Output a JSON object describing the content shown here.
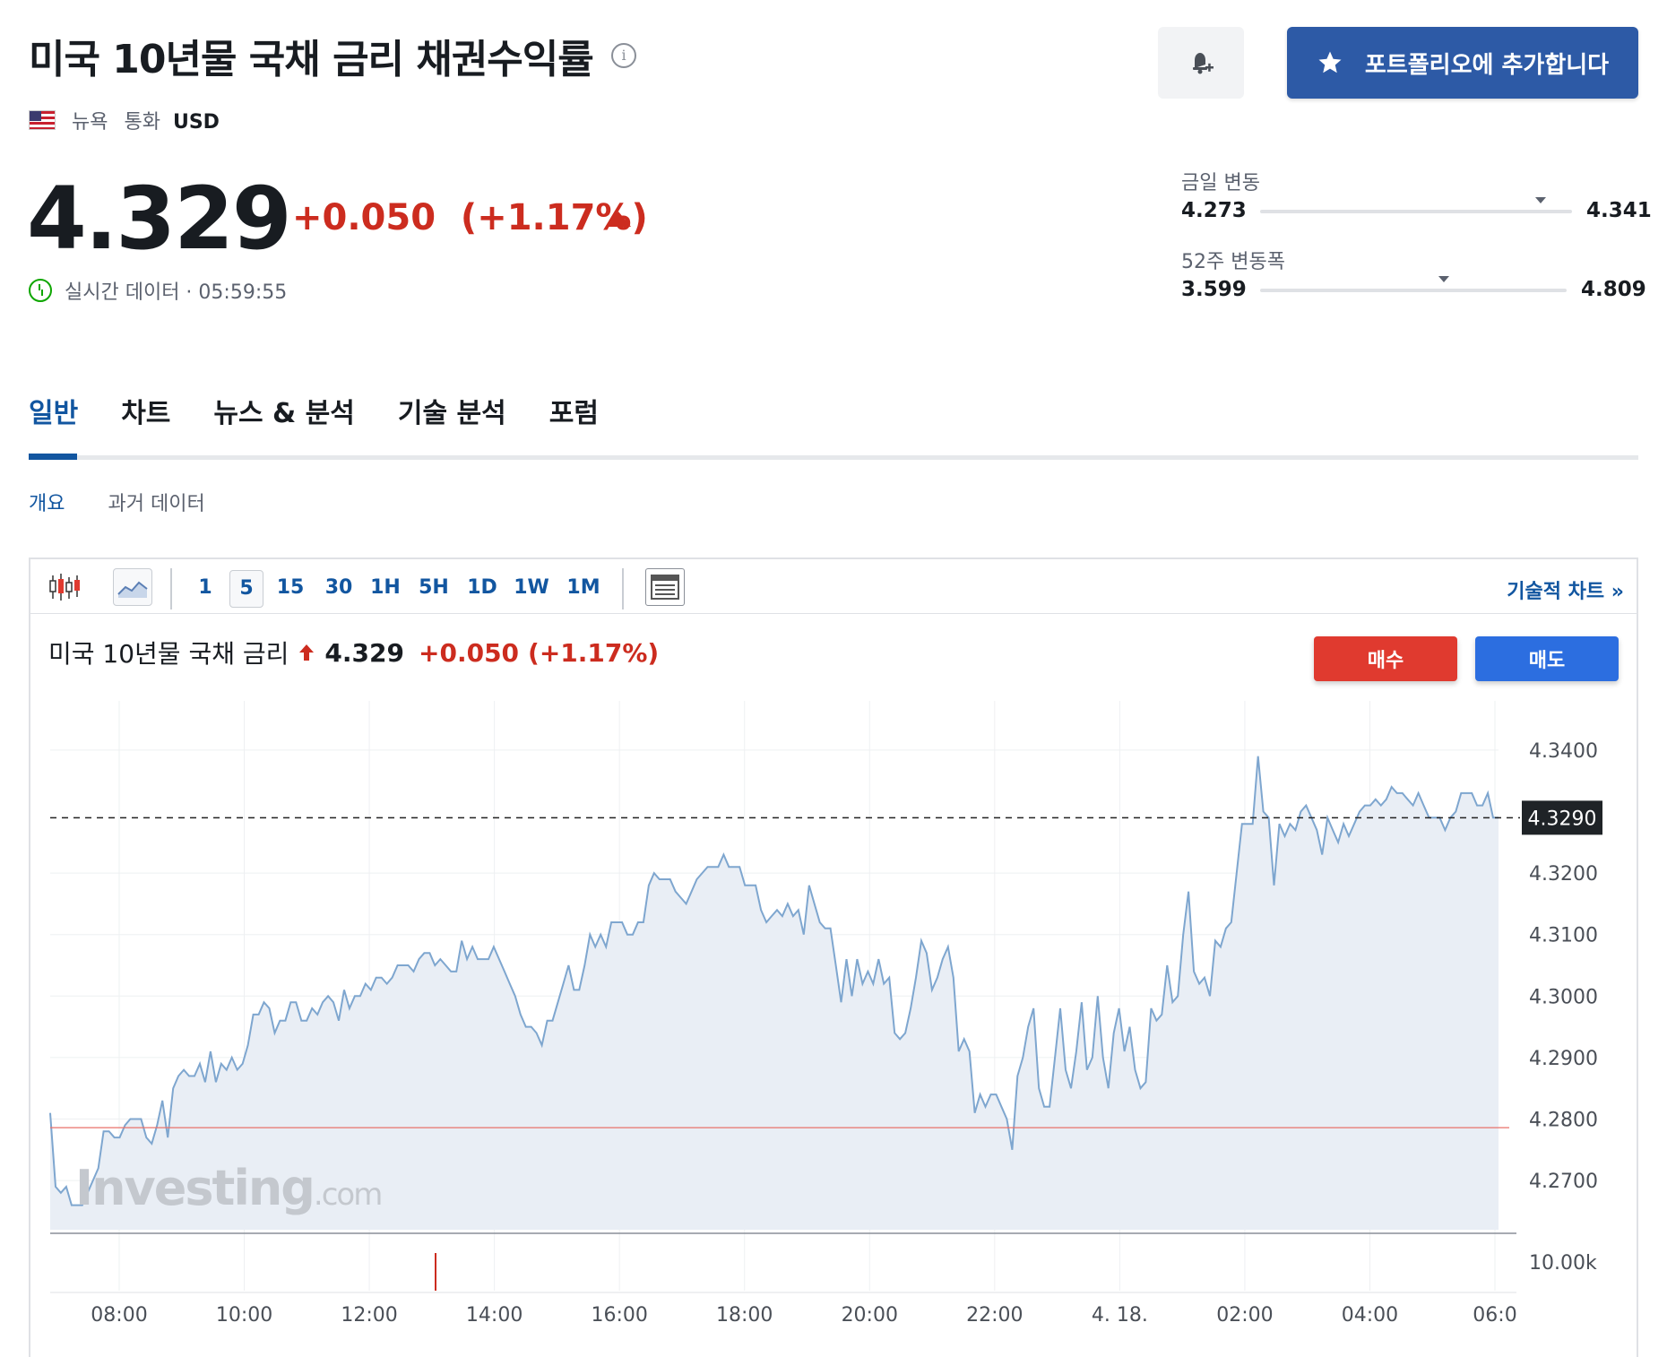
{
  "header": {
    "title": "미국 10년물 국채 금리 채권수익률",
    "info_icon": "info-icon",
    "bell_icon": "bell-plus-icon",
    "portfolio_label": "포트폴리오에 추가합니다",
    "star_icon": "star-icon"
  },
  "meta": {
    "flag_icon": "us-flag-icon",
    "exchange": "뉴욕",
    "currency_label": "통화",
    "currency": "USD"
  },
  "quote": {
    "price": "4.329",
    "change": "+0.050",
    "change_pct": "(+1.17%)",
    "realtime_label": "실시간 데이터 · 05:59:55",
    "colors": {
      "up": "#cc2c1f",
      "positive_clock": "#0ea600"
    }
  },
  "ranges": {
    "daily_label": "금일 변동",
    "daily_low": "4.273",
    "daily_high": "4.341",
    "daily_position": 0.9,
    "week52_label": "52주 변동폭",
    "week52_low": "3.599",
    "week52_high": "4.809",
    "week52_position": 0.6
  },
  "tabs": [
    {
      "label": "일반",
      "active": true
    },
    {
      "label": "차트",
      "active": false
    },
    {
      "label": "뉴스 & 분석",
      "active": false
    },
    {
      "label": "기술 분석",
      "active": false
    },
    {
      "label": "포럼",
      "active": false
    }
  ],
  "subtabs": [
    {
      "label": "개요",
      "active": true
    },
    {
      "label": "과거 데이터",
      "active": false
    }
  ],
  "toolbar": {
    "candle_icon": "candlestick-icon",
    "area_icon": "area-chart-icon",
    "timeframes": [
      "1",
      "5",
      "15",
      "30",
      "1H",
      "5H",
      "1D",
      "1W",
      "1M"
    ],
    "selected_timeframe": "5",
    "layout_icon": "layout-icon",
    "tech_chart_label": "기술적 차트 »"
  },
  "chart_header": {
    "name": "미국 10년물 국채 금리",
    "price": "4.329",
    "change": "+0.050",
    "change_pct": "(+1.17%)",
    "buy_label": "매수",
    "sell_label": "매도"
  },
  "chart_data": {
    "type": "area",
    "x_tick_labels": [
      "08:00",
      "10:00",
      "12:00",
      "14:00",
      "16:00",
      "18:00",
      "20:00",
      "22:00",
      "4. 18.",
      "02:00",
      "04:00",
      "06:0"
    ],
    "y_tick_labels": [
      "4.3400",
      "4.3200",
      "4.3100",
      "4.3000",
      "4.2900",
      "4.2800",
      "4.2700"
    ],
    "y_ticks": [
      4.34,
      4.32,
      4.31,
      4.3,
      4.29,
      4.28,
      4.27
    ],
    "ylim": [
      4.262,
      4.348
    ],
    "current_label": "4.3290",
    "current_value": 4.329,
    "previous_close": 4.2786,
    "volume_label": "10.00k",
    "watermark": "Investing",
    "watermark_suffix": ".com",
    "colors": {
      "line": "#7ea6cf",
      "fill": "#e9eef5",
      "prev_close": "#e8716a",
      "volume": "#cc2c1f"
    },
    "series": [
      {
        "values": [
          4.281,
          4.269,
          4.268,
          4.269,
          4.266,
          4.266,
          4.266,
          4.268,
          4.27,
          4.272,
          4.278,
          4.278,
          4.277,
          4.277,
          4.279,
          4.28,
          4.28,
          4.28,
          4.277,
          4.276,
          4.279,
          4.283,
          4.277,
          4.285,
          4.287,
          4.288,
          4.287,
          4.287,
          4.289,
          4.286,
          4.291,
          4.286,
          4.289,
          4.288,
          4.29,
          4.288,
          4.289,
          4.292,
          4.297,
          4.297,
          4.299,
          4.298,
          4.294,
          4.296,
          4.296,
          4.299,
          4.299,
          4.296,
          4.296,
          4.298,
          4.297,
          4.299,
          4.3,
          4.299,
          4.296,
          4.301,
          4.298,
          4.3,
          4.3,
          4.302,
          4.301,
          4.303,
          4.303,
          4.302,
          4.303,
          4.305,
          4.305,
          4.305,
          4.304,
          4.306,
          4.307,
          4.307,
          4.305,
          4.306,
          4.305,
          4.304,
          4.304,
          4.309,
          4.306,
          4.308,
          4.306,
          4.306,
          4.306,
          4.308,
          4.306,
          4.304,
          4.302,
          4.3,
          4.297,
          4.295,
          4.295,
          4.294,
          4.292,
          4.296,
          4.296,
          4.299,
          4.302,
          4.305,
          4.301,
          4.301,
          4.305,
          4.31,
          4.308,
          4.31,
          4.308,
          4.312,
          4.312,
          4.312,
          4.31,
          4.31,
          4.312,
          4.312,
          4.318,
          4.32,
          4.319,
          4.319,
          4.319,
          4.317,
          4.316,
          4.315,
          4.317,
          4.319,
          4.32,
          4.321,
          4.321,
          4.321,
          4.323,
          4.321,
          4.321,
          4.321,
          4.318,
          4.318,
          4.318,
          4.314,
          4.312,
          4.313,
          4.314,
          4.313,
          4.315,
          4.313,
          4.314,
          4.31,
          4.318,
          4.315,
          4.312,
          4.311,
          4.311,
          4.305,
          4.299,
          4.306,
          4.3,
          4.306,
          4.302,
          4.304,
          4.302,
          4.306,
          4.302,
          4.303,
          4.294,
          4.293,
          4.294,
          4.298,
          4.303,
          4.309,
          4.307,
          4.301,
          4.303,
          4.306,
          4.308,
          4.303,
          4.291,
          4.293,
          4.291,
          4.281,
          4.284,
          4.282,
          4.284,
          4.284,
          4.282,
          4.28,
          4.275,
          4.287,
          4.29,
          4.295,
          4.298,
          4.285,
          4.282,
          4.282,
          4.29,
          4.298,
          4.288,
          4.285,
          4.291,
          4.299,
          4.288,
          4.29,
          4.3,
          4.29,
          4.285,
          4.294,
          4.298,
          4.291,
          4.295,
          4.288,
          4.285,
          4.286,
          4.298,
          4.296,
          4.297,
          4.305,
          4.299,
          4.3,
          4.31,
          4.317,
          4.304,
          4.302,
          4.303,
          4.3,
          4.309,
          4.308,
          4.311,
          4.312,
          4.32,
          4.328,
          4.328,
          4.328,
          4.339,
          4.33,
          4.329,
          4.318,
          4.328,
          4.326,
          4.328,
          4.327,
          4.33,
          4.331,
          4.329,
          4.327,
          4.323,
          4.329,
          4.327,
          4.325,
          4.328,
          4.326,
          4.328,
          4.33,
          4.331,
          4.331,
          4.332,
          4.331,
          4.332,
          4.334,
          4.333,
          4.333,
          4.332,
          4.331,
          4.333,
          4.331,
          4.329,
          4.329,
          4.329,
          4.327,
          4.329,
          4.33,
          4.333,
          4.333,
          4.333,
          4.331,
          4.331,
          4.333,
          4.329,
          4.329
        ]
      }
    ]
  }
}
